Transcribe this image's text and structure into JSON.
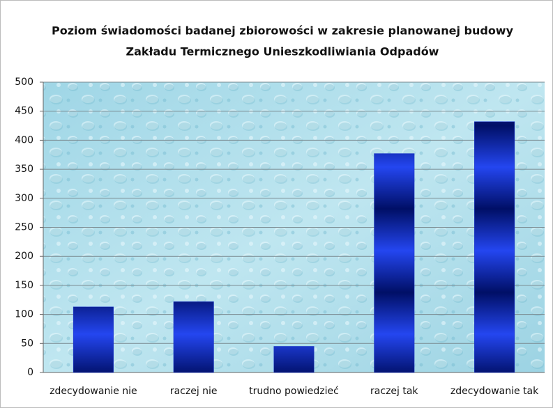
{
  "chart_data": {
    "type": "bar",
    "title": [
      "Poziom świadomości badanej zbiorowości w zakresie planowanej budowy",
      "Zakładu Termicznego Unieszkodliwiania Odpadów"
    ],
    "categories": [
      "zdecydowanie nie",
      "raczej nie",
      "trudno powiedzieć",
      "raczej tak",
      "zdecydowanie tak"
    ],
    "values": [
      113,
      122,
      45,
      377,
      432
    ],
    "color": "#1630c8",
    "ylim": [
      0,
      500
    ],
    "yticks": [
      0,
      50,
      100,
      150,
      200,
      250,
      300,
      350,
      400,
      450,
      500
    ],
    "grid": true
  }
}
